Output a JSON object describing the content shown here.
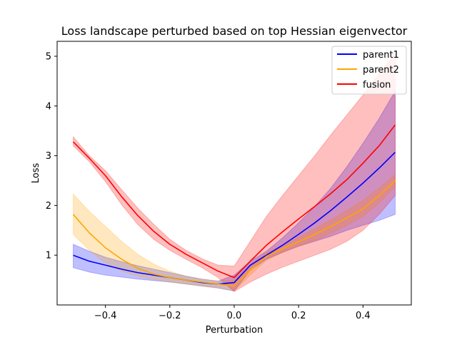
{
  "chart_data": {
    "type": "line",
    "title": "Loss landscape perturbed based on top Hessian eigenvector",
    "xlabel": "Perturbation",
    "ylabel": "Loss",
    "xlim": [
      -0.55,
      0.55
    ],
    "ylim": [
      0.0,
      5.3
    ],
    "xticks": [
      -0.4,
      -0.2,
      0.0,
      0.2,
      0.4
    ],
    "xtick_labels": [
      "−0.4",
      "−0.2",
      "0.0",
      "0.2",
      "0.4"
    ],
    "yticks": [
      1,
      2,
      3,
      4,
      5
    ],
    "ytick_labels": [
      "1",
      "2",
      "3",
      "4",
      "5"
    ],
    "grid": false,
    "legend_position": "top-right",
    "x": [
      -0.5,
      -0.45,
      -0.4,
      -0.35,
      -0.3,
      -0.25,
      -0.2,
      -0.15,
      -0.1,
      -0.05,
      0.0,
      0.05,
      0.1,
      0.15,
      0.2,
      0.25,
      0.3,
      0.35,
      0.4,
      0.45,
      0.5
    ],
    "series": [
      {
        "name": "parent1",
        "color": "#0000ff",
        "band_color": "#0000ff",
        "values": [
          1.0,
          0.88,
          0.8,
          0.72,
          0.65,
          0.6,
          0.55,
          0.5,
          0.45,
          0.42,
          0.45,
          0.8,
          1.0,
          1.2,
          1.42,
          1.65,
          1.9,
          2.17,
          2.45,
          2.75,
          3.07
        ],
        "upper": [
          1.22,
          1.08,
          0.96,
          0.87,
          0.79,
          0.72,
          0.65,
          0.58,
          0.52,
          0.48,
          0.6,
          0.88,
          1.08,
          1.35,
          1.65,
          1.98,
          2.35,
          2.78,
          3.25,
          3.75,
          4.3
        ],
        "lower": [
          0.75,
          0.66,
          0.6,
          0.56,
          0.52,
          0.49,
          0.46,
          0.42,
          0.38,
          0.34,
          0.28,
          0.7,
          0.92,
          1.06,
          1.18,
          1.28,
          1.38,
          1.5,
          1.6,
          1.7,
          1.82
        ]
      },
      {
        "name": "parent2",
        "color": "#ffa500",
        "band_color": "#ffa500",
        "values": [
          1.82,
          1.45,
          1.15,
          0.92,
          0.74,
          0.62,
          0.55,
          0.5,
          0.46,
          0.42,
          0.38,
          0.7,
          0.98,
          1.13,
          1.27,
          1.42,
          1.58,
          1.75,
          1.93,
          2.2,
          2.5
        ],
        "upper": [
          2.23,
          1.88,
          1.58,
          1.28,
          1.02,
          0.82,
          0.68,
          0.58,
          0.52,
          0.48,
          0.5,
          0.8,
          1.05,
          1.2,
          1.36,
          1.53,
          1.71,
          1.9,
          2.1,
          2.35,
          2.62
        ],
        "lower": [
          1.42,
          1.1,
          0.84,
          0.68,
          0.58,
          0.51,
          0.46,
          0.42,
          0.38,
          0.34,
          0.28,
          0.6,
          0.9,
          1.05,
          1.18,
          1.3,
          1.44,
          1.6,
          1.78,
          2.05,
          2.38
        ]
      },
      {
        "name": "fusion",
        "color": "#ff0000",
        "band_color": "#ff0000",
        "values": [
          3.28,
          2.95,
          2.6,
          2.18,
          1.8,
          1.48,
          1.22,
          1.02,
          0.85,
          0.68,
          0.55,
          0.88,
          1.2,
          1.47,
          1.73,
          1.98,
          2.24,
          2.52,
          2.85,
          3.2,
          3.62
        ],
        "upper": [
          3.38,
          3.0,
          2.7,
          2.32,
          1.95,
          1.62,
          1.32,
          1.1,
          0.93,
          0.8,
          0.78,
          1.28,
          1.78,
          2.2,
          2.6,
          3.0,
          3.42,
          3.82,
          4.22,
          4.65,
          5.05
        ],
        "lower": [
          3.2,
          2.88,
          2.48,
          2.02,
          1.62,
          1.32,
          1.1,
          0.92,
          0.75,
          0.55,
          0.27,
          0.46,
          0.62,
          0.76,
          0.88,
          1.0,
          1.12,
          1.28,
          1.5,
          1.82,
          2.2
        ]
      }
    ]
  }
}
